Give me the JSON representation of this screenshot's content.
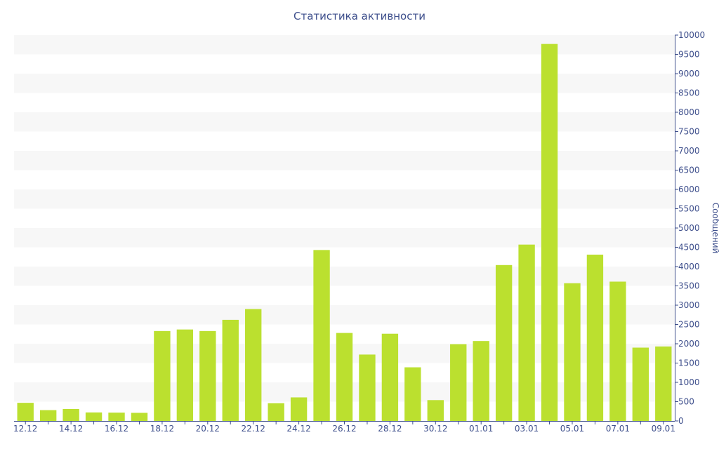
{
  "chart_data": {
    "type": "bar",
    "title": "Статистика активности",
    "xlabel": "",
    "ylabel": "Сообщений",
    "y_axis_side": "right",
    "ylim": [
      0,
      10000
    ],
    "ytick_step": 500,
    "grid": "alternating horizontal bands",
    "colors": {
      "bar": "#bbe02f",
      "band": "#f7f7f7",
      "text": "#3e4f8c",
      "axis": "#3e4f8c"
    },
    "categories": [
      "12.12",
      "13.12",
      "14.12",
      "15.12",
      "16.12",
      "17.12",
      "18.12",
      "19.12",
      "20.12",
      "21.12",
      "22.12",
      "23.12",
      "24.12",
      "25.12",
      "26.12",
      "27.12",
      "28.12",
      "29.12",
      "30.12",
      "31.12",
      "01.01",
      "02.01",
      "03.01",
      "04.01",
      "05.01",
      "06.01",
      "07.01",
      "08.01",
      "09.01"
    ],
    "x_tick_labels": [
      "12.12",
      "14.12",
      "16.12",
      "18.12",
      "20.12",
      "22.12",
      "24.12",
      "26.12",
      "28.12",
      "30.12",
      "01.01",
      "03.01",
      "05.01",
      "07.01",
      "09.01"
    ],
    "values": [
      470,
      280,
      310,
      220,
      215,
      210,
      2330,
      2370,
      2330,
      2620,
      2900,
      460,
      610,
      4430,
      2280,
      1720,
      2260,
      1390,
      540,
      1990,
      2070,
      4040,
      4570,
      9770,
      3570,
      4310,
      3610,
      1900,
      1930
    ]
  }
}
